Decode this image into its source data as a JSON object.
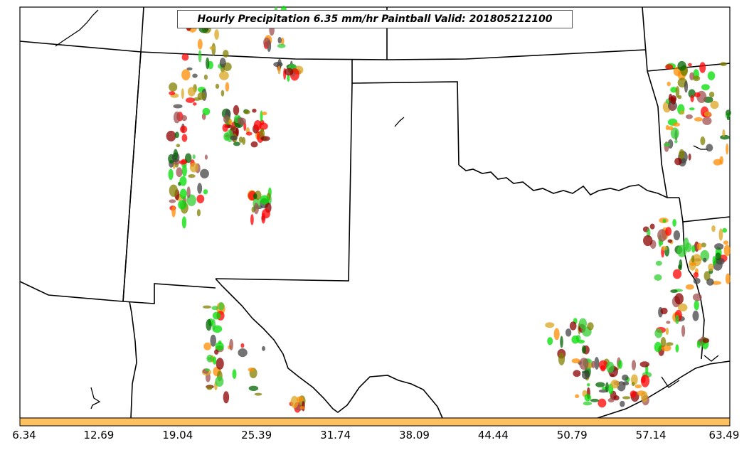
{
  "title": "Hourly Precipitation 6.35 mm/hr Paintball Valid: 201805212100",
  "colorbar": {
    "fill_color": "#ffc060",
    "tick_labels": [
      "6.34",
      "12.69",
      "19.04",
      "25.39",
      "31.74",
      "38.09",
      "44.44",
      "50.79",
      "57.14",
      "63.49"
    ]
  },
  "map": {
    "background": "#ffffff",
    "border_color": "#000000",
    "ensemble_colors": [
      "#ff0000",
      "#ff8c00",
      "#32cd32",
      "#8b0000",
      "#808000",
      "#a05050",
      "#006400",
      "#444444",
      "#daa520",
      "#00dd00"
    ]
  }
}
